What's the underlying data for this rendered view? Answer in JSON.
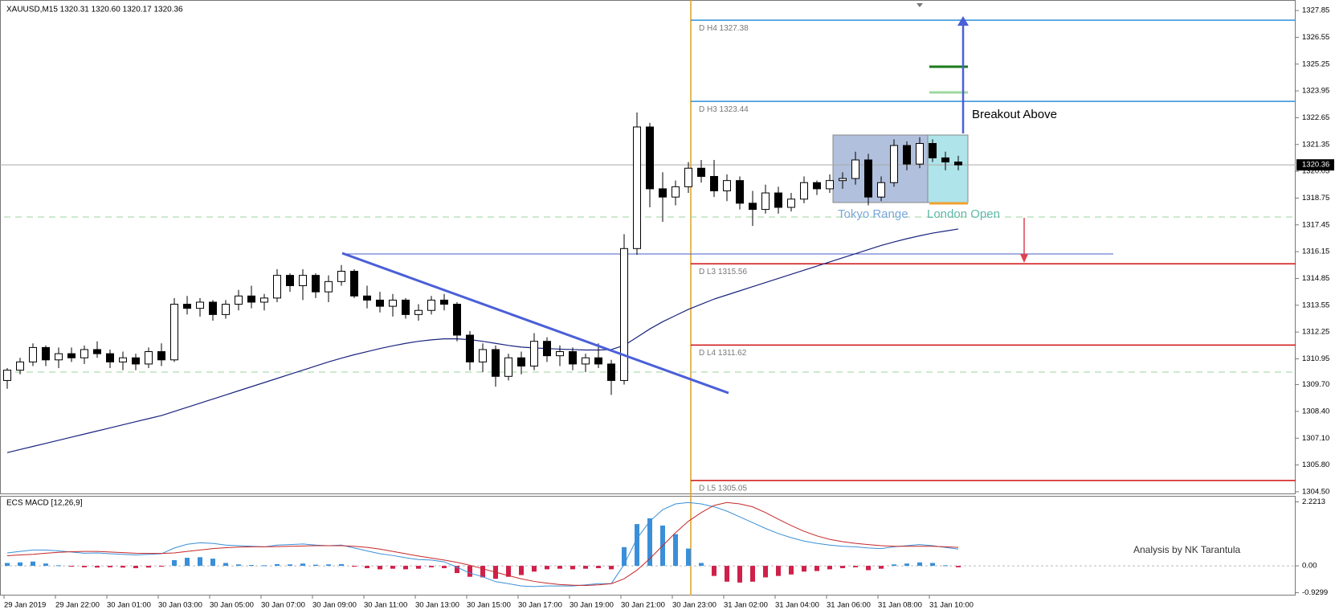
{
  "chart_data": {
    "type": "candlestick",
    "header": "XAUUSD,M15  1320.31 1320.60 1320.17 1320.36",
    "ylim": [
      1304.38,
      1328.36
    ],
    "yticks": [
      1327.85,
      1326.55,
      1325.25,
      1323.95,
      1322.65,
      1321.35,
      1320.05,
      1318.75,
      1317.45,
      1316.15,
      1314.85,
      1313.55,
      1312.25,
      1310.95,
      {
        "value": 1309.7,
        "label": "1309.70"
      },
      {
        "value": 1308.4,
        "label": "1308.40"
      },
      {
        "value": 1307.1,
        "label": "1307.10"
      },
      {
        "value": 1305.8,
        "label": "1305.80"
      },
      {
        "value": 1304.5,
        "label": "1304.50"
      }
    ],
    "current_price": 1320.36,
    "time_labels": [
      "29 Jan 2019",
      "29 Jan 22:00",
      "30 Jan 01:00",
      "30 Jan 03:00",
      "30 Jan 05:00",
      "30 Jan 07:00",
      "30 Jan 09:00",
      "30 Jan 11:00",
      "30 Jan 13:00",
      "30 Jan 15:00",
      "30 Jan 17:00",
      "30 Jan 19:00",
      "30 Jan 21:00",
      "30 Jan 23:00",
      "31 Jan 02:00",
      "31 Jan 04:00",
      "31 Jan 06:00",
      "31 Jan 08:00",
      "31 Jan 10:00"
    ],
    "candles": [
      [
        1309.9,
        1310.5,
        1309.5,
        1310.4
      ],
      [
        1310.4,
        1311.0,
        1310.2,
        1310.8
      ],
      [
        1310.8,
        1311.7,
        1310.6,
        1311.5
      ],
      [
        1311.5,
        1311.6,
        1310.6,
        1310.9
      ],
      [
        1310.9,
        1311.5,
        1310.5,
        1311.2
      ],
      [
        1311.2,
        1311.5,
        1310.8,
        1311.0
      ],
      [
        1311.0,
        1311.6,
        1310.7,
        1311.4
      ],
      [
        1311.4,
        1311.8,
        1311.0,
        1311.2
      ],
      [
        1311.2,
        1311.4,
        1310.5,
        1310.8
      ],
      [
        1310.8,
        1311.3,
        1310.4,
        1311.0
      ],
      [
        1311.0,
        1311.2,
        1310.4,
        1310.7
      ],
      [
        1310.7,
        1311.5,
        1310.5,
        1311.3
      ],
      [
        1311.3,
        1311.7,
        1310.6,
        1310.9
      ],
      [
        1310.9,
        1313.9,
        1310.8,
        1313.6
      ],
      [
        1313.6,
        1314.0,
        1313.1,
        1313.4
      ],
      [
        1313.4,
        1313.9,
        1313.0,
        1313.7
      ],
      [
        1313.7,
        1313.8,
        1312.8,
        1313.1
      ],
      [
        1313.1,
        1313.8,
        1312.9,
        1313.6
      ],
      [
        1313.6,
        1314.3,
        1313.3,
        1314.0
      ],
      [
        1314.0,
        1314.5,
        1313.4,
        1313.7
      ],
      [
        1313.7,
        1314.1,
        1313.3,
        1313.9
      ],
      [
        1313.9,
        1315.3,
        1313.7,
        1315.0
      ],
      [
        1315.0,
        1315.1,
        1314.2,
        1314.5
      ],
      [
        1314.5,
        1315.3,
        1313.8,
        1315.0
      ],
      [
        1315.0,
        1315.1,
        1313.9,
        1314.2
      ],
      [
        1314.2,
        1315.0,
        1313.7,
        1314.7
      ],
      [
        1314.7,
        1315.5,
        1314.5,
        1315.2
      ],
      [
        1315.2,
        1315.3,
        1313.9,
        1314.0
      ],
      [
        1314.0,
        1314.5,
        1313.4,
        1313.8
      ],
      [
        1313.8,
        1314.2,
        1313.2,
        1313.5
      ],
      [
        1313.5,
        1314.1,
        1313.0,
        1313.8
      ],
      [
        1313.8,
        1313.9,
        1312.9,
        1313.1
      ],
      [
        1313.1,
        1313.6,
        1312.8,
        1313.3
      ],
      [
        1313.3,
        1314.0,
        1313.1,
        1313.8
      ],
      [
        1313.8,
        1314.1,
        1313.3,
        1313.6
      ],
      [
        1313.6,
        1313.7,
        1311.8,
        1312.1
      ],
      [
        1312.1,
        1312.3,
        1310.4,
        1310.8
      ],
      [
        1310.8,
        1311.7,
        1310.3,
        1311.4
      ],
      [
        1311.4,
        1311.6,
        1309.6,
        1310.1
      ],
      [
        1310.1,
        1311.2,
        1309.9,
        1311.0
      ],
      [
        1311.0,
        1311.3,
        1310.2,
        1310.6
      ],
      [
        1310.6,
        1312.2,
        1310.4,
        1311.8
      ],
      [
        1311.8,
        1312.0,
        1310.8,
        1311.1
      ],
      [
        1311.1,
        1311.6,
        1310.6,
        1311.3
      ],
      [
        1311.3,
        1311.5,
        1310.4,
        1310.7
      ],
      [
        1310.7,
        1311.2,
        1310.3,
        1311.0
      ],
      [
        1311.0,
        1311.7,
        1310.5,
        1310.7
      ],
      [
        1310.7,
        1310.9,
        1309.2,
        1309.9
      ],
      [
        1309.9,
        1317.0,
        1309.7,
        1316.3
      ],
      [
        1316.3,
        1322.9,
        1316.0,
        1322.2
      ],
      [
        1322.2,
        1322.4,
        1318.3,
        1319.2
      ],
      [
        1319.2,
        1320.0,
        1317.6,
        1318.8
      ],
      [
        1318.8,
        1319.6,
        1318.4,
        1319.3
      ],
      [
        1319.3,
        1320.5,
        1319.0,
        1320.2
      ],
      [
        1320.2,
        1320.6,
        1319.5,
        1319.8
      ],
      [
        1319.8,
        1320.6,
        1318.8,
        1319.1
      ],
      [
        1319.1,
        1319.9,
        1318.6,
        1319.6
      ],
      [
        1319.6,
        1319.8,
        1318.2,
        1318.5
      ],
      [
        1318.5,
        1319.1,
        1317.4,
        1318.2
      ],
      [
        1318.2,
        1319.4,
        1318.0,
        1319.0
      ],
      [
        1319.0,
        1319.3,
        1318.0,
        1318.3
      ],
      [
        1318.3,
        1319.0,
        1318.1,
        1318.7
      ],
      [
        1318.7,
        1319.8,
        1318.5,
        1319.5
      ],
      [
        1319.5,
        1319.6,
        1318.9,
        1319.2
      ],
      [
        1319.2,
        1319.9,
        1319.0,
        1319.6
      ],
      [
        1319.6,
        1320.0,
        1319.2,
        1319.7
      ],
      [
        1319.7,
        1321.0,
        1319.4,
        1320.6
      ],
      [
        1320.6,
        1320.9,
        1318.4,
        1318.8
      ],
      [
        1318.8,
        1319.8,
        1318.6,
        1319.5
      ],
      [
        1319.5,
        1321.6,
        1319.3,
        1321.3
      ],
      [
        1321.3,
        1321.5,
        1320.1,
        1320.4
      ],
      [
        1320.4,
        1321.7,
        1320.2,
        1321.4
      ],
      [
        1321.4,
        1321.6,
        1320.5,
        1320.7
      ],
      [
        1320.7,
        1321.0,
        1320.1,
        1320.5
      ],
      [
        1320.5,
        1320.8,
        1320.1,
        1320.36
      ]
    ],
    "ma": [
      1306.4,
      1306.55,
      1306.7,
      1306.85,
      1307.0,
      1307.15,
      1307.3,
      1307.45,
      1307.6,
      1307.75,
      1307.9,
      1308.05,
      1308.2,
      1308.4,
      1308.6,
      1308.8,
      1309.0,
      1309.2,
      1309.4,
      1309.6,
      1309.8,
      1310.0,
      1310.2,
      1310.4,
      1310.6,
      1310.8,
      1310.98,
      1311.15,
      1311.3,
      1311.45,
      1311.58,
      1311.7,
      1311.8,
      1311.87,
      1311.92,
      1311.92,
      1311.88,
      1311.8,
      1311.7,
      1311.6,
      1311.52,
      1311.48,
      1311.45,
      1311.42,
      1311.4,
      1311.38,
      1311.38,
      1311.4,
      1311.6,
      1312.0,
      1312.4,
      1312.75,
      1313.05,
      1313.35,
      1313.6,
      1313.85,
      1314.05,
      1314.25,
      1314.45,
      1314.65,
      1314.85,
      1315.05,
      1315.25,
      1315.45,
      1315.65,
      1315.85,
      1316.05,
      1316.25,
      1316.45,
      1316.62,
      1316.78,
      1316.92,
      1317.05,
      1317.15,
      1317.25
    ],
    "ma_color": "#1a237e",
    "levels": [
      {
        "label": "D  H4 1327.38",
        "value": 1327.38,
        "color": "#2f8fd8"
      },
      {
        "label": "D  H3 1323.44",
        "value": 1323.44,
        "color": "#2f8fd8"
      },
      {
        "label": "D  L3 1315.56",
        "value": 1315.56,
        "color": "#d01010"
      },
      {
        "label": "D  L4 1311.62",
        "value": 1311.62,
        "color": "#d01010"
      },
      {
        "label": "D  L5 1305.05",
        "value": 1305.05,
        "color": "#d01010"
      }
    ],
    "annotations": {
      "tokyo": "Tokyo Range",
      "london": "London Open",
      "breakout": "Breakout Above",
      "credit": "Analysis by NK Tarantula"
    },
    "macd": {
      "title": "ECS MACD [12,26,9]",
      "ylim": [
        -1.03,
        2.43
      ],
      "yticks": [
        2.2213,
        {
          "value": 0,
          "label": "0.00"
        },
        -0.9299
      ],
      "pos_color": "#3a8fd8",
      "neg_color": "#d0204a",
      "macd_color": "#3a8fd8",
      "signal_color": "#c62828",
      "histogram": [
        0.1,
        0.12,
        0.15,
        0.08,
        0.02,
        -0.03,
        -0.05,
        -0.06,
        -0.05,
        -0.06,
        -0.08,
        -0.06,
        -0.03,
        0.2,
        0.28,
        0.3,
        0.25,
        0.1,
        0.05,
        0.03,
        0.02,
        0.06,
        0.05,
        0.08,
        0.04,
        0.05,
        0.06,
        -0.03,
        -0.08,
        -0.12,
        -0.1,
        -0.12,
        -0.1,
        -0.05,
        -0.08,
        -0.25,
        -0.38,
        -0.4,
        -0.45,
        -0.38,
        -0.32,
        -0.2,
        -0.12,
        -0.1,
        -0.12,
        -0.1,
        -0.08,
        -0.12,
        0.65,
        1.45,
        1.65,
        1.4,
        1.1,
        0.6,
        0.1,
        -0.35,
        -0.55,
        -0.58,
        -0.55,
        -0.4,
        -0.35,
        -0.3,
        -0.2,
        -0.18,
        -0.12,
        -0.08,
        -0.05,
        -0.15,
        -0.1,
        0.05,
        0.08,
        0.12,
        0.1,
        0.02,
        -0.05
      ],
      "macd": [
        0.45,
        0.5,
        0.55,
        0.55,
        0.52,
        0.48,
        0.44,
        0.45,
        0.42,
        0.4,
        0.38,
        0.4,
        0.42,
        0.62,
        0.75,
        0.8,
        0.78,
        0.72,
        0.7,
        0.68,
        0.66,
        0.72,
        0.74,
        0.76,
        0.72,
        0.7,
        0.72,
        0.62,
        0.52,
        0.42,
        0.36,
        0.28,
        0.22,
        0.2,
        0.14,
        -0.05,
        -0.25,
        -0.38,
        -0.55,
        -0.62,
        -0.7,
        -0.72,
        -0.7,
        -0.7,
        -0.7,
        -0.66,
        -0.62,
        -0.62,
        0.05,
        0.95,
        1.55,
        1.95,
        2.15,
        2.2,
        2.15,
        2.05,
        1.9,
        1.7,
        1.5,
        1.3,
        1.12,
        0.98,
        0.86,
        0.78,
        0.72,
        0.68,
        0.66,
        0.62,
        0.6,
        0.66,
        0.7,
        0.74,
        0.7,
        0.64,
        0.58
      ],
      "signal": [
        0.35,
        0.38,
        0.4,
        0.44,
        0.47,
        0.49,
        0.5,
        0.5,
        0.48,
        0.46,
        0.44,
        0.43,
        0.43,
        0.45,
        0.5,
        0.55,
        0.6,
        0.63,
        0.65,
        0.66,
        0.66,
        0.67,
        0.68,
        0.69,
        0.7,
        0.7,
        0.7,
        0.68,
        0.64,
        0.58,
        0.5,
        0.42,
        0.34,
        0.27,
        0.2,
        0.12,
        0.02,
        -0.1,
        -0.22,
        -0.34,
        -0.45,
        -0.54,
        -0.6,
        -0.65,
        -0.67,
        -0.68,
        -0.66,
        -0.62,
        -0.45,
        -0.15,
        0.25,
        0.7,
        1.15,
        1.55,
        1.85,
        2.1,
        2.2,
        2.15,
        2.05,
        1.85,
        1.62,
        1.4,
        1.2,
        1.04,
        0.92,
        0.84,
        0.78,
        0.74,
        0.7,
        0.68,
        0.68,
        0.68,
        0.68,
        0.66,
        0.64
      ]
    }
  }
}
